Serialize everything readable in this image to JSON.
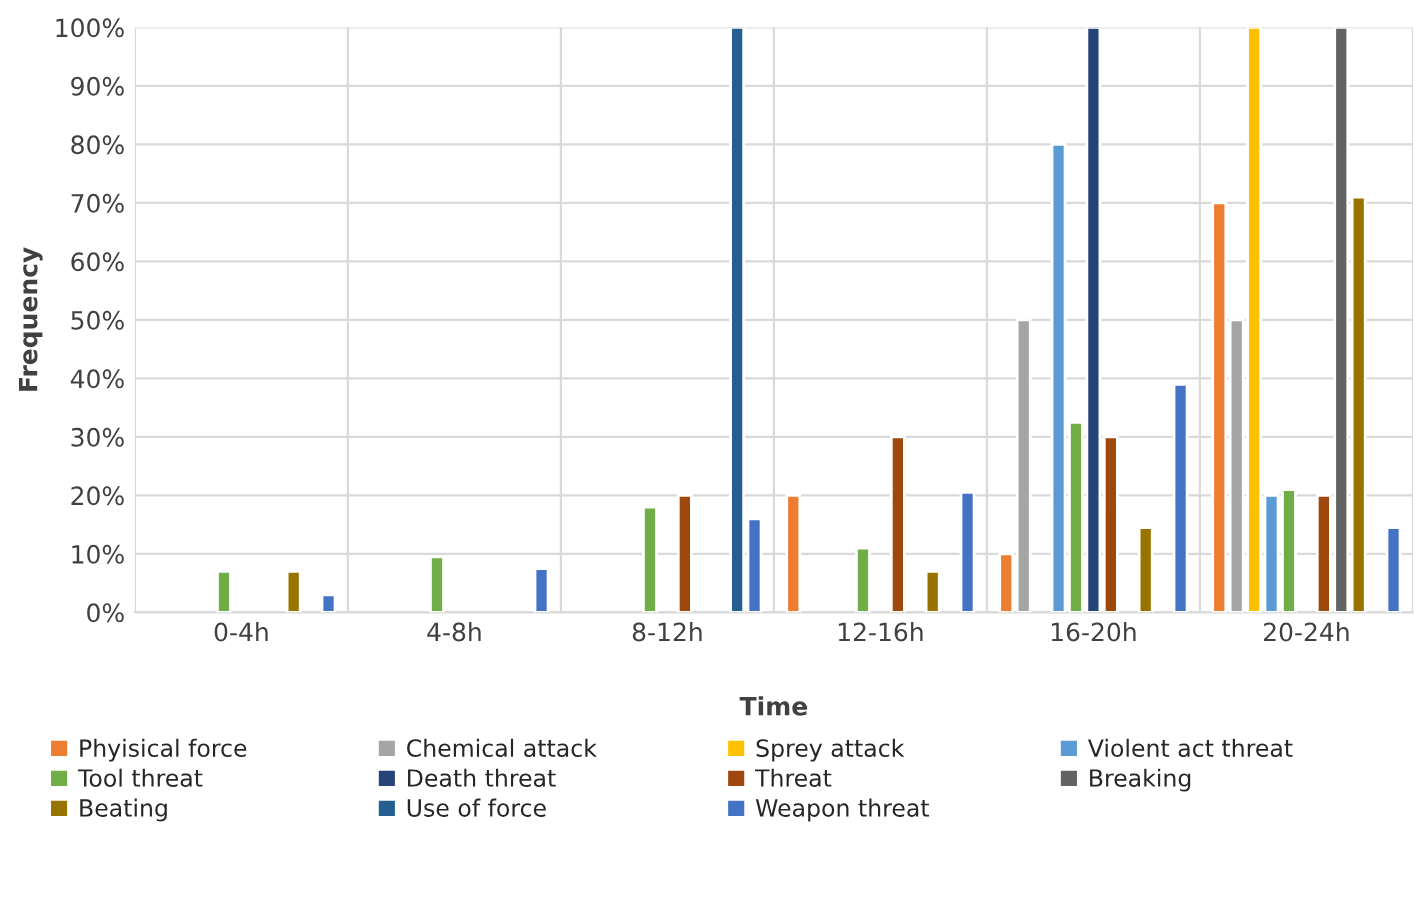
{
  "chart_data": {
    "type": "bar",
    "xlabel": "Time",
    "ylabel": "Frequency",
    "categories": [
      "0-4h",
      "4-8h",
      "8-12h",
      "12-16h",
      "16-20h",
      "20-24h"
    ],
    "series": [
      {
        "name": "Phyisical force",
        "color": "#ed7d31",
        "values": [
          null,
          null,
          null,
          20,
          10,
          70
        ]
      },
      {
        "name": "Chemical attack",
        "color": "#a5a5a5",
        "values": [
          null,
          null,
          null,
          null,
          50,
          50
        ]
      },
      {
        "name": "Sprey attack",
        "color": "#ffc000",
        "values": [
          null,
          null,
          null,
          null,
          null,
          100
        ]
      },
      {
        "name": "Violent act threat",
        "color": "#5b9bd5",
        "values": [
          null,
          null,
          null,
          null,
          80,
          20
        ]
      },
      {
        "name": "Tool threat",
        "color": "#70ad47",
        "values": [
          7,
          9.5,
          18,
          11,
          32.5,
          21
        ]
      },
      {
        "name": "Death threat",
        "color": "#264478",
        "values": [
          null,
          null,
          null,
          null,
          100,
          null
        ]
      },
      {
        "name": "Threat",
        "color": "#9e480e",
        "values": [
          null,
          null,
          20,
          30,
          30,
          20
        ]
      },
      {
        "name": "Breaking",
        "color": "#636363",
        "values": [
          null,
          null,
          null,
          null,
          null,
          100
        ]
      },
      {
        "name": "Beating",
        "color": "#997300",
        "values": [
          7,
          null,
          null,
          7,
          14.5,
          71
        ]
      },
      {
        "name": "Use of force",
        "color": "#255e91",
        "values": [
          null,
          null,
          100,
          null,
          null,
          null
        ]
      },
      {
        "name": "Weapon threat",
        "color": "#4472c4",
        "values": [
          3,
          7.5,
          16,
          20.5,
          39,
          14.5
        ]
      }
    ],
    "ylim": [
      0,
      100
    ],
    "yticks": [
      {
        "value": 0,
        "label": "0%"
      },
      {
        "value": 10,
        "label": "10%"
      },
      {
        "value": 20,
        "label": "20%"
      },
      {
        "value": 30,
        "label": "30%"
      },
      {
        "value": 40,
        "label": "40%"
      },
      {
        "value": 50,
        "label": "50%"
      },
      {
        "value": 60,
        "label": "60%"
      },
      {
        "value": 70,
        "label": "70%"
      },
      {
        "value": 80,
        "label": "80%"
      },
      {
        "value": 90,
        "label": "90%"
      },
      {
        "value": 100,
        "label": "100%"
      }
    ],
    "grid": true,
    "legend": "bottom"
  }
}
